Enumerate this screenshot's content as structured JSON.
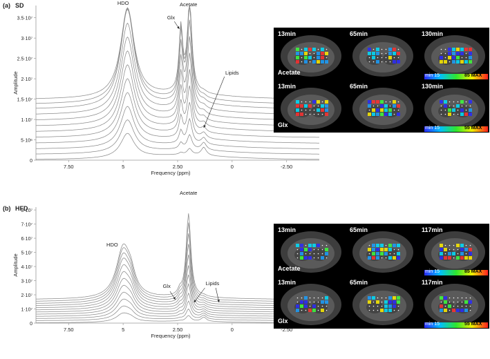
{
  "panels": [
    {
      "panel_letter": "(a)",
      "diet": "SD",
      "chart_data": {
        "type": "line",
        "title": "",
        "xlabel": "Frequency (ppm)",
        "ylabel": "Amplitude",
        "xlim": [
          9.0,
          -4.0
        ],
        "ylim": [
          0,
          38000000
        ],
        "x_ticks": [
          7.5,
          5,
          2.5,
          0,
          -2.5
        ],
        "x_tick_labels": [
          "7.50",
          "5",
          "2.50",
          "0",
          "-2.50"
        ],
        "y_ticks": [
          0,
          5000000,
          10000000,
          15000000,
          20000000,
          25000000,
          30000000,
          35000000
        ],
        "y_tick_labels": [
          "0",
          "5·10⁶",
          "1·10⁷",
          "1.5·10⁷",
          "2·10⁷",
          "2.5·10⁷",
          "3·10⁷",
          "3.5·10⁷"
        ],
        "num_series": 12,
        "series_offsets": [
          0,
          1300000,
          2600000,
          4000000,
          5400000,
          6800000,
          8200000,
          9600000,
          11000000,
          12400000,
          13600000,
          14800000
        ],
        "peaks": [
          {
            "label": "HDO",
            "ppm": 4.8,
            "heights": [
              6000000,
              8000000,
              10000000,
              12000000,
              14000000,
              16000000,
              18000000,
              20000000,
              22000000,
              24000000,
              23000000,
              22000000
            ]
          },
          {
            "label": "Acetate",
            "ppm": 1.95,
            "heights": [
              1500000,
              3500000,
              6000000,
              8500000,
              11000000,
              13500000,
              16000000,
              18500000,
              21000000,
              23000000,
              22500000,
              22000000
            ]
          },
          {
            "label": "Glx",
            "ppm": 2.35,
            "heights": [
              500000,
              1500000,
              3000000,
              5000000,
              7000000,
              9000000,
              11000000,
              13000000,
              15000000,
              16500000,
              16000000,
              15500000
            ]
          },
          {
            "label": "Lipids",
            "ppm": 1.3,
            "heights": [
              2000000,
              1800000,
              1600000,
              1400000,
              1200000,
              1000000,
              900000,
              800000,
              700000,
              600000,
              500000,
              400000
            ]
          }
        ],
        "annotations": [
          "HDO",
          "Acetate",
          "Glx",
          "Lipids"
        ]
      },
      "maps": {
        "timepoints": [
          "13min",
          "65min",
          "130min"
        ],
        "rows": [
          {
            "metabolite": "Acetate",
            "scale_min": "min 15",
            "scale_max": "85 MAX"
          },
          {
            "metabolite": "Glx",
            "scale_min": "min 15",
            "scale_max": "55 MAX"
          }
        ]
      }
    },
    {
      "panel_letter": "(b)",
      "diet": "HFD",
      "chart_data": {
        "type": "line",
        "title": "",
        "xlabel": "Frequency (ppm)",
        "ylabel": "Amplitude",
        "xlim": [
          9.0,
          -4.0
        ],
        "ylim": [
          0,
          82000000
        ],
        "x_ticks": [
          7.5,
          5,
          2.5,
          0,
          -2.5
        ],
        "x_tick_labels": [
          "7.50",
          "5",
          "2.50",
          "0",
          "-2.50"
        ],
        "y_ticks": [
          0,
          10000000,
          20000000,
          30000000,
          40000000,
          50000000,
          60000000,
          70000000,
          80000000
        ],
        "y_tick_labels": [
          "0",
          "1·10⁷",
          "2·10⁷",
          "3·10⁷",
          "4·10⁷",
          "5·10⁷",
          "6·10⁷",
          "7·10⁷",
          "8·10⁷"
        ],
        "num_series": 12,
        "series_offsets": [
          0,
          1500000,
          3000000,
          4500000,
          6000000,
          7500000,
          9000000,
          10500000,
          12000000,
          13500000,
          15000000,
          16500000
        ],
        "peaks": [
          {
            "label": "HDO",
            "ppm": 5.0,
            "heights": [
              6000000,
              9000000,
              12000000,
              15000000,
              18000000,
              21000000,
              24000000,
              27000000,
              30000000,
              32000000,
              34000000,
              35000000
            ],
            "shoulder_heights": [
              2000000,
              3000000,
              4000000,
              5000000,
              6000000,
              7000000,
              8000000,
              9000000,
              9500000,
              10000000,
              10500000,
              11000000
            ]
          },
          {
            "label": "Acetate",
            "ppm": 2.0,
            "heights": [
              4000000,
              7000000,
              11000000,
              15000000,
              20000000,
              25000000,
              30000000,
              36000000,
              42000000,
              48000000,
              54000000,
              59000000
            ]
          },
          {
            "label": "Glx",
            "ppm": 2.4,
            "heights": [
              300000,
              600000,
              900000,
              1200000,
              1500000,
              1800000,
              2100000,
              2400000,
              2700000,
              3000000,
              3300000,
              3500000
            ]
          },
          {
            "label": "Lipids",
            "ppm": 1.3,
            "heights": [
              3000000,
              2800000,
              2600000,
              2400000,
              2200000,
              2000000,
              1800000,
              1600000,
              1400000,
              1200000,
              1000000,
              800000
            ]
          }
        ],
        "annotations": [
          "HDO",
          "Acetate",
          "Glx",
          "Lipids"
        ]
      },
      "maps": {
        "timepoints": [
          "13min",
          "65min",
          "117min"
        ],
        "rows": [
          {
            "metabolite": "Acetate",
            "scale_min": "min 15",
            "scale_max": "85 MAX"
          },
          {
            "metabolite": "Glx",
            "scale_min": "min 15",
            "scale_max": "55 MAX"
          }
        ]
      }
    }
  ],
  "colors": {
    "trace": "#8a8a8a",
    "axis": "#999999",
    "text": "#222222"
  }
}
